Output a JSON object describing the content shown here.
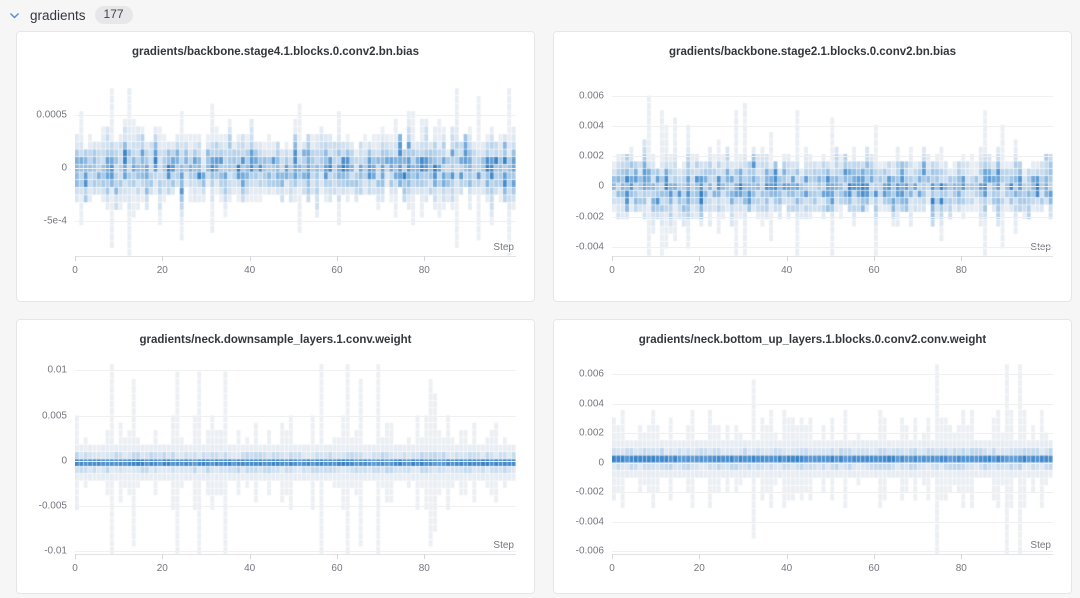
{
  "section": {
    "label": "gradients",
    "count": "177"
  },
  "colors": {
    "page_background": "#f6f6f7",
    "chevron": "#5a8dd6",
    "panel_border": "#e6e6e8",
    "grid_line": "#f0f0f1",
    "axis_line": "#e3e3e6",
    "tick_mark": "#d6d6da",
    "tick_text": "#75777f",
    "title_text": "#33373d",
    "heatmap_stops": [
      "#f1f2f3",
      "#e4ebf3",
      "#c9dcee",
      "#a3c7e6",
      "#6fa7d8",
      "#3680c6"
    ]
  },
  "chart_data": [
    {
      "type": "heatmap",
      "title": "gradients/backbone.stage4.1.blocks.0.conv2.bn.bias",
      "xlabel": "Step",
      "x_ticks": [
        0,
        20,
        40,
        60,
        80
      ],
      "xlim": [
        0,
        101
      ],
      "n_steps": 101,
      "rows": 22,
      "ylim": [
        -0.00083,
        0.00075
      ],
      "y_ticks": [
        {
          "value": 0.0005,
          "label": "0.0005"
        },
        {
          "value": 0,
          "label": "0"
        },
        {
          "value": -0.0005,
          "label": "-5e-4"
        }
      ],
      "grid": true,
      "legend": false,
      "profile": "wide",
      "seed": 11,
      "distribution": {
        "center": 0,
        "typical_spread": 0.0002,
        "max_extent": 0.0007,
        "shape": "diffuse gaussian band per step"
      }
    },
    {
      "type": "heatmap",
      "title": "gradients/backbone.stage2.1.blocks.0.conv2.bn.bias",
      "xlabel": "Step",
      "x_ticks": [
        0,
        20,
        40,
        60,
        80
      ],
      "xlim": [
        0,
        101
      ],
      "n_steps": 101,
      "rows": 23,
      "ylim": [
        -0.0046,
        0.0065
      ],
      "y_ticks": [
        {
          "value": 0.006,
          "label": "0.006"
        },
        {
          "value": 0.004,
          "label": "0.004"
        },
        {
          "value": 0.002,
          "label": "0.002"
        },
        {
          "value": 0,
          "label": "0"
        },
        {
          "value": -0.002,
          "label": "-0.002"
        },
        {
          "value": -0.004,
          "label": "-0.004"
        }
      ],
      "grid": true,
      "legend": false,
      "profile": "wide",
      "seed": 23,
      "distribution": {
        "center": 0,
        "typical_spread": 0.001,
        "max_extent": 0.0035,
        "shape": "diffuse gaussian band per step"
      }
    },
    {
      "type": "heatmap",
      "title": "gradients/neck.downsample_layers.1.conv.weight",
      "xlabel": "Step",
      "x_ticks": [
        0,
        20,
        40,
        60,
        80
      ],
      "xlim": [
        0,
        101
      ],
      "n_steps": 101,
      "rows": 26,
      "ylim": [
        -0.0103,
        0.0107
      ],
      "y_ticks": [
        {
          "value": 0.01,
          "label": "0.01"
        },
        {
          "value": 0.005,
          "label": "0.005"
        },
        {
          "value": 0,
          "label": "0"
        },
        {
          "value": -0.005,
          "label": "-0.005"
        },
        {
          "value": -0.01,
          "label": "-0.01"
        }
      ],
      "grid": true,
      "legend": false,
      "profile": "narrow",
      "seed": 37,
      "distribution": {
        "center": 0,
        "typical_spread": 0.0004,
        "max_extent": 0.01,
        "shape": "dense dark band at 0 with faint wide tails"
      }
    },
    {
      "type": "heatmap",
      "title": "gradients/neck.bottom_up_layers.1.blocks.0.conv2.conv.weight",
      "xlabel": "Step",
      "x_ticks": [
        0,
        20,
        40,
        60,
        80
      ],
      "xlim": [
        0,
        101
      ],
      "n_steps": 101,
      "rows": 25,
      "ylim": [
        -0.0062,
        0.0067
      ],
      "y_ticks": [
        {
          "value": 0.006,
          "label": "0.006"
        },
        {
          "value": 0.004,
          "label": "0.004"
        },
        {
          "value": 0.002,
          "label": "0.002"
        },
        {
          "value": 0,
          "label": "0"
        },
        {
          "value": -0.002,
          "label": "-0.002"
        },
        {
          "value": -0.004,
          "label": "-0.004"
        },
        {
          "value": -0.006,
          "label": "-0.006"
        }
      ],
      "grid": true,
      "legend": false,
      "profile": "narrow",
      "seed": 49,
      "distribution": {
        "center": 0,
        "typical_spread": 0.0003,
        "max_extent": 0.006,
        "shape": "dense dark band at 0 with faint wide tails"
      }
    }
  ]
}
